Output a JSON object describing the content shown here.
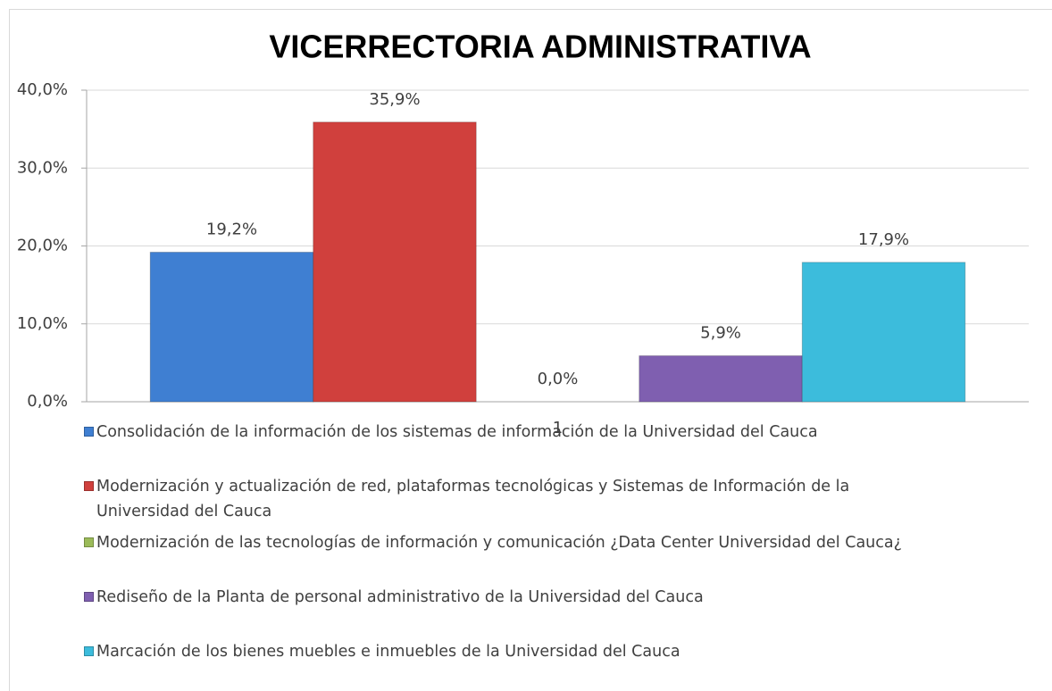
{
  "chart_data": {
    "type": "bar",
    "title": "VICERRECTORIA ADMINISTRATIVA",
    "categories": [
      "1"
    ],
    "series": [
      {
        "name": "Consolidación de la información de los sistemas de información de la Universidad del Cauca",
        "color": "#3f7fd2",
        "values": [
          19.2
        ],
        "value_labels": [
          "19,2%"
        ]
      },
      {
        "name": "Modernización y actualización de red, plataformas tecnológicas  y Sistemas de Información de la Universidad del Cauca",
        "color": "#d0403d",
        "values": [
          35.9
        ],
        "value_labels": [
          "35,9%"
        ]
      },
      {
        "name": "Modernización de las tecnologías de información y comunicación ¿Data Center Universidad del Cauca¿",
        "color": "#9bbb59",
        "values": [
          0.0
        ],
        "value_labels": [
          "0,0%"
        ]
      },
      {
        "name": "Rediseño  de la Planta de personal administrativo de la Universidad del Cauca",
        "color": "#7f5fb0",
        "values": [
          5.9
        ],
        "value_labels": [
          "5,9%"
        ]
      },
      {
        "name": "Marcación de los bienes muebles e inmuebles de la Universidad del Cauca",
        "color": "#3cbcdc",
        "values": [
          17.9
        ],
        "value_labels": [
          "17,9%"
        ]
      }
    ],
    "ylim": [
      0,
      40
    ],
    "yticks": [
      {
        "value": 0,
        "label": "0,0%"
      },
      {
        "value": 10,
        "label": "10,0%"
      },
      {
        "value": 20,
        "label": "20,0%"
      },
      {
        "value": 30,
        "label": "30,0%"
      },
      {
        "value": 40,
        "label": "40,0%"
      }
    ],
    "grid": true,
    "legend": "bottom"
  }
}
